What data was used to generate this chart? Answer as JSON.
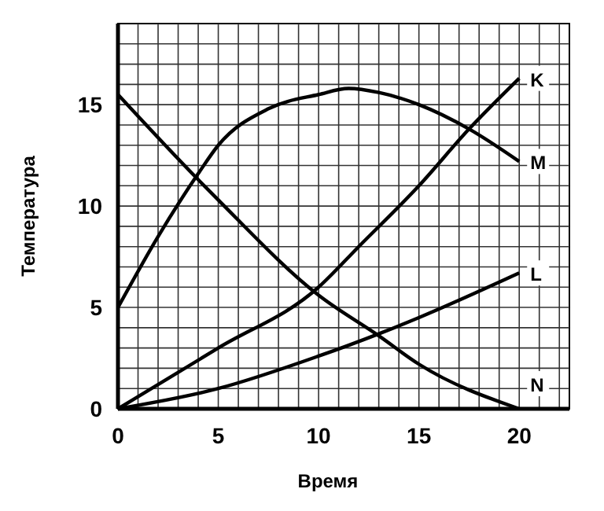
{
  "chart_data": {
    "type": "line",
    "xlabel": "Время",
    "ylabel": "Температура",
    "xlim": [
      0,
      22.5
    ],
    "ylim": [
      0,
      19
    ],
    "xticks": [
      0,
      {
        "value": 1,
        "label": null
      },
      {
        "value": 2,
        "label": null
      },
      {
        "value": 3,
        "label": null
      },
      {
        "value": 4,
        "label": null
      },
      5,
      {
        "value": 6,
        "label": null
      },
      {
        "value": 7,
        "label": null
      },
      {
        "value": 8,
        "label": null
      },
      {
        "value": 9,
        "label": null
      },
      10,
      {
        "value": 11,
        "label": null
      },
      {
        "value": 12,
        "label": null
      },
      {
        "value": 13,
        "label": null
      },
      {
        "value": 14,
        "label": null
      },
      15,
      {
        "value": 16,
        "label": null
      },
      {
        "value": 17,
        "label": null
      },
      {
        "value": 18,
        "label": null
      },
      {
        "value": 19,
        "label": null
      },
      20,
      {
        "value": 21,
        "label": null
      },
      {
        "value": 22,
        "label": null
      }
    ],
    "yticks": [
      0,
      {
        "value": 1,
        "label": null
      },
      {
        "value": 2,
        "label": null
      },
      {
        "value": 3,
        "label": null
      },
      {
        "value": 4,
        "label": null
      },
      5,
      {
        "value": 6,
        "label": null
      },
      {
        "value": 7,
        "label": null
      },
      {
        "value": 8,
        "label": null
      },
      {
        "value": 9,
        "label": null
      },
      10,
      {
        "value": 11,
        "label": null
      },
      {
        "value": 12,
        "label": null
      },
      {
        "value": 13,
        "label": null
      },
      {
        "value": 14,
        "label": null
      },
      15,
      {
        "value": 16,
        "label": null
      },
      {
        "value": 17,
        "label": null
      },
      {
        "value": 18,
        "label": null
      }
    ],
    "grid": true,
    "marker": "none",
    "line_style": "solid",
    "series": [
      {
        "name": "K",
        "color": "#000000",
        "x": [
          0,
          5,
          10,
          12,
          15,
          17.5,
          20
        ],
        "values": [
          0,
          3,
          6,
          8,
          11,
          13.8,
          16.3
        ]
      },
      {
        "name": "M",
        "color": "#000000",
        "x": [
          0,
          2,
          4,
          5,
          7.5,
          10,
          11.5,
          13,
          15,
          17.5,
          20
        ],
        "values": [
          5,
          8.5,
          11.6,
          13,
          14.8,
          15.5,
          15.8,
          15.6,
          15,
          13.8,
          12.2
        ]
      },
      {
        "name": "L",
        "color": "#000000",
        "x": [
          0,
          5,
          10,
          13,
          15,
          20
        ],
        "values": [
          0,
          1,
          2.6,
          3.7,
          4.5,
          6.7
        ]
      },
      {
        "name": "N",
        "color": "#000000",
        "x": [
          0,
          4,
          5,
          10,
          13,
          15,
          20
        ],
        "values": [
          15.5,
          11.3,
          10.3,
          5.6,
          3.6,
          2.2,
          0
        ]
      }
    ]
  }
}
